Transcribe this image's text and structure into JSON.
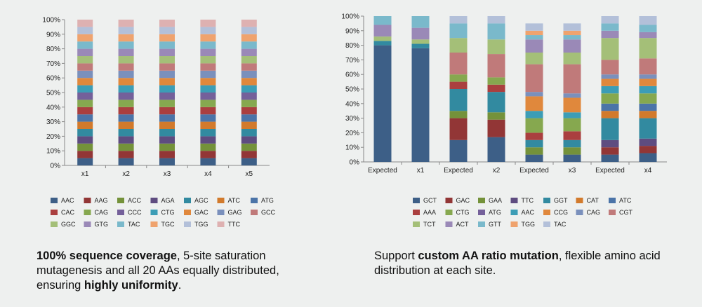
{
  "colors": {
    "AAC": "#3d5f87",
    "AAG": "#923636",
    "ACC": "#74923a",
    "AGA": "#5e4c80",
    "AGC": "#328aa0",
    "ATC": "#d27a2c",
    "ATG": "#4b74a8",
    "CAC": "#aa3f3f",
    "CAG": "#86a84f",
    "CCC": "#74609a",
    "CTG": "#3c9db6",
    "GAC": "#e0883c",
    "GAG": "#7a90bc",
    "GCC": "#c07a7a",
    "GGC": "#a4bf78",
    "GTG": "#9a89b7",
    "TAC": "#7ab9cb",
    "TGC": "#efa36e",
    "TGG": "#b3c0d9",
    "TTC": "#deb1b1",
    "GCT": "#3d5f87",
    "GAA": "#74923a",
    "TTC2": "#5e4c80",
    "GGT": "#328aa0",
    "CAT": "#d27a2c",
    "AAA": "#aa3f3f",
    "CTG2": "#86a84f",
    "ATG2": "#74609a",
    "AAC2": "#3c9db6",
    "CCG": "#e0883c",
    "CAG2": "#7a90bc",
    "CGT": "#c07a7a",
    "TCT": "#a4bf78",
    "ACT": "#9a89b7",
    "GTT": "#7ab9cb",
    "TGG2": "#efa36e",
    "TAC2": "#b3c0d9"
  },
  "chart_data": [
    {
      "type": "bar",
      "stacked": true,
      "categories": [
        "x1",
        "x2",
        "x3",
        "x4",
        "x5"
      ],
      "ylim": [
        0,
        100
      ],
      "yticks": [
        "0%",
        "10%",
        "20%",
        "30%",
        "40%",
        "50%",
        "60%",
        "70%",
        "80%",
        "90%",
        "100%"
      ],
      "legend_position": "bottom",
      "series": [
        {
          "name": "AAC",
          "color_key": "AAC",
          "values": [
            5,
            5,
            5,
            5,
            5
          ]
        },
        {
          "name": "AAG",
          "color_key": "AAG",
          "values": [
            5,
            5,
            5,
            5,
            5
          ]
        },
        {
          "name": "ACC",
          "color_key": "ACC",
          "values": [
            5,
            5,
            5,
            5,
            5
          ]
        },
        {
          "name": "AGA",
          "color_key": "AGA",
          "values": [
            5,
            5,
            5,
            5,
            5
          ]
        },
        {
          "name": "AGC",
          "color_key": "AGC",
          "values": [
            5,
            5,
            5,
            5,
            5
          ]
        },
        {
          "name": "ATC",
          "color_key": "ATC",
          "values": [
            5,
            5,
            5,
            5,
            5
          ]
        },
        {
          "name": "ATG",
          "color_key": "ATG",
          "values": [
            5,
            5,
            5,
            5,
            5
          ]
        },
        {
          "name": "CAC",
          "color_key": "CAC",
          "values": [
            5,
            5,
            5,
            5,
            5
          ]
        },
        {
          "name": "CAG",
          "color_key": "CAG",
          "values": [
            5,
            5,
            5,
            5,
            5
          ]
        },
        {
          "name": "CCC",
          "color_key": "CCC",
          "values": [
            5,
            5,
            5,
            5,
            5
          ]
        },
        {
          "name": "CTG",
          "color_key": "CTG",
          "values": [
            5,
            5,
            5,
            5,
            5
          ]
        },
        {
          "name": "GAC",
          "color_key": "GAC",
          "values": [
            5,
            5,
            5,
            5,
            5
          ]
        },
        {
          "name": "GAG",
          "color_key": "GAG",
          "values": [
            5,
            5,
            5,
            5,
            5
          ]
        },
        {
          "name": "GCC",
          "color_key": "GCC",
          "values": [
            5,
            5,
            5,
            5,
            5
          ]
        },
        {
          "name": "GGC",
          "color_key": "GGC",
          "values": [
            5,
            5,
            5,
            5,
            5
          ]
        },
        {
          "name": "GTG",
          "color_key": "GTG",
          "values": [
            5,
            5,
            5,
            5,
            5
          ]
        },
        {
          "name": "TAC",
          "color_key": "TAC",
          "values": [
            5,
            5,
            5,
            5,
            5
          ]
        },
        {
          "name": "TGC",
          "color_key": "TGC",
          "values": [
            5,
            5,
            5,
            5,
            5
          ]
        },
        {
          "name": "TGG",
          "color_key": "TGG",
          "values": [
            5,
            5,
            5,
            5,
            5
          ]
        },
        {
          "name": "TTC",
          "color_key": "TTC",
          "values": [
            5,
            5,
            5,
            5,
            5
          ]
        }
      ]
    },
    {
      "type": "bar",
      "stacked": true,
      "categories": [
        "Expected",
        "x1",
        "Expected",
        "x2",
        "Expected",
        "x3",
        "Expected",
        "x4"
      ],
      "ylim": [
        0,
        100
      ],
      "yticks": [
        "0%",
        "10%",
        "20%",
        "30%",
        "40%",
        "50%",
        "60%",
        "70%",
        "80%",
        "90%",
        "100%"
      ],
      "legend_position": "bottom",
      "series": [
        {
          "name": "GCT",
          "color_key": "GCT",
          "values": [
            80,
            78,
            15,
            17,
            5,
            5,
            5,
            6
          ]
        },
        {
          "name": "GAC",
          "color_key": "AAG",
          "values": [
            0,
            0,
            15,
            12,
            0,
            0,
            5,
            5
          ]
        },
        {
          "name": "GAA",
          "color_key": "GAA",
          "values": [
            0,
            0,
            5,
            5,
            5,
            5,
            0,
            0
          ]
        },
        {
          "name": "TTC",
          "color_key": "TTC2",
          "values": [
            0,
            0,
            0,
            0,
            0,
            0,
            5,
            5
          ]
        },
        {
          "name": "GGT",
          "color_key": "GGT",
          "values": [
            3,
            3,
            15,
            14,
            5,
            5,
            15,
            14
          ]
        },
        {
          "name": "CAT",
          "color_key": "CAT",
          "values": [
            0,
            0,
            0,
            0,
            0,
            0,
            5,
            5
          ]
        },
        {
          "name": "ATC",
          "color_key": "ATG",
          "values": [
            0,
            0,
            0,
            0,
            0,
            0,
            5,
            5
          ]
        },
        {
          "name": "AAA",
          "color_key": "AAA",
          "values": [
            0,
            0,
            5,
            5,
            5,
            6,
            0,
            0
          ]
        },
        {
          "name": "CTG",
          "color_key": "CTG2",
          "values": [
            0,
            0,
            5,
            5,
            10,
            9,
            7,
            7
          ]
        },
        {
          "name": "ATG",
          "color_key": "ATG2",
          "values": [
            0,
            0,
            0,
            0,
            0,
            0,
            0,
            0
          ]
        },
        {
          "name": "AAC",
          "color_key": "AAC2",
          "values": [
            0,
            0,
            0,
            0,
            5,
            4,
            5,
            5
          ]
        },
        {
          "name": "CCG",
          "color_key": "CCG",
          "values": [
            0,
            0,
            0,
            0,
            10,
            10,
            5,
            5
          ]
        },
        {
          "name": "CAG",
          "color_key": "CAG2",
          "values": [
            0,
            0,
            0,
            0,
            3,
            3,
            3,
            3
          ]
        },
        {
          "name": "CGT",
          "color_key": "CGT",
          "values": [
            0,
            0,
            15,
            16,
            19,
            20,
            10,
            11
          ]
        },
        {
          "name": "TCT",
          "color_key": "TCT",
          "values": [
            3,
            3,
            10,
            10,
            8,
            8,
            15,
            14
          ]
        },
        {
          "name": "ACT",
          "color_key": "ACT",
          "values": [
            8,
            8,
            0,
            0,
            9,
            9,
            5,
            4
          ]
        },
        {
          "name": "GTT",
          "color_key": "GTT",
          "values": [
            6,
            8,
            10,
            11,
            3,
            3,
            5,
            5
          ]
        },
        {
          "name": "TGG",
          "color_key": "TGG2",
          "values": [
            0,
            0,
            0,
            0,
            3,
            3,
            0,
            0
          ]
        },
        {
          "name": "TAC",
          "color_key": "TAC2",
          "values": [
            0,
            0,
            5,
            5,
            5,
            5,
            5,
            6
          ]
        }
      ]
    }
  ],
  "legends": {
    "left": [
      [
        "AAC",
        "AAG",
        "ACC",
        "AGA",
        "AGC",
        "ATC",
        "ATG"
      ],
      [
        "CAC",
        "CAG",
        "CCC",
        "CTG",
        "GAC",
        "GAG",
        "GCC"
      ],
      [
        "GGC",
        "GTG",
        "TAC",
        "TGC",
        "TGG",
        "TTC"
      ]
    ],
    "right": [
      [
        "GCT",
        "GAC",
        "GAA",
        "TTC",
        "GGT",
        "CAT",
        "ATC"
      ],
      [
        "AAA",
        "CTG",
        "ATG",
        "AAC",
        "CCG",
        "CAG",
        "CGT"
      ],
      [
        "TCT",
        "ACT",
        "GTT",
        "TGG",
        "TAC"
      ]
    ],
    "right_color_keys": [
      [
        "GCT",
        "AAG",
        "GAA",
        "TTC2",
        "GGT",
        "CAT",
        "ATG"
      ],
      [
        "AAA",
        "CTG2",
        "ATG2",
        "AAC2",
        "CCG",
        "CAG2",
        "CGT"
      ],
      [
        "TCT",
        "ACT",
        "GTT",
        "TGG2",
        "TAC2"
      ]
    ]
  },
  "captions": {
    "left": {
      "bold1": "100% sequence coverage",
      "text1": ", 5-site saturation mutagenesis and all 20 AAs equally distributed, ensuring ",
      "bold2": "highly uniformity",
      "text2": "."
    },
    "right": {
      "text1": "Support ",
      "bold1": "custom AA ratio mutation",
      "text2": ", flexible amino acid distribution at each site."
    }
  }
}
